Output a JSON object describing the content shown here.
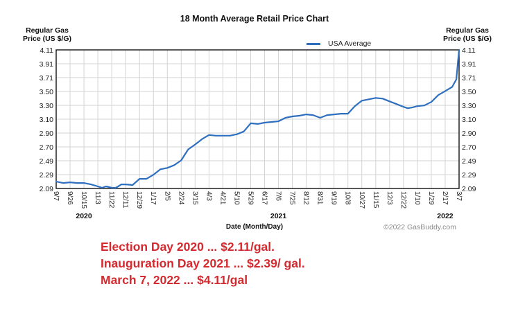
{
  "chart_data": {
    "type": "line",
    "title": "18 Month Average Retail Price Chart",
    "ylabel_left": [
      "Regular Gas",
      "Price (US $/G)"
    ],
    "ylabel_right": [
      "Regular Gas",
      "Price (US $/G)"
    ],
    "xlabel": "Date (Month/Day)",
    "ylim": [
      2.09,
      4.11
    ],
    "yticks": [
      "2.09",
      "2.29",
      "2.49",
      "2.70",
      "2.90",
      "3.10",
      "3.30",
      "3.50",
      "3.71",
      "3.91",
      "4.11"
    ],
    "xticks": [
      "9/7",
      "9/26",
      "10/15",
      "11/3",
      "11/22",
      "12/11",
      "12/29",
      "1/17",
      "2/5",
      "2/24",
      "3/15",
      "4/3",
      "4/21",
      "5/10",
      "5/29",
      "6/17",
      "7/6",
      "7/25",
      "8/12",
      "8/31",
      "9/19",
      "10/8",
      "10/27",
      "11/15",
      "12/3",
      "12/22",
      "1/10",
      "1/29",
      "2/17",
      "3/7"
    ],
    "years": [
      {
        "label": "2020",
        "tick_index": 2
      },
      {
        "label": "2021",
        "tick_index": 16
      },
      {
        "label": "2022",
        "tick_index": 28
      }
    ],
    "grid": true,
    "legend": {
      "position": "top-right",
      "entries": [
        "USA Average"
      ]
    },
    "series": [
      {
        "name": "USA Average",
        "color": "#2f6fbf",
        "x": [
          0,
          0.5,
          1,
          1.5,
          2,
          2.5,
          3,
          3.3,
          3.6,
          4,
          4.3,
          4.7,
          5,
          5.5,
          6,
          6.5,
          7,
          7.5,
          8,
          8.5,
          9,
          9.5,
          10,
          10.5,
          11,
          11.5,
          12,
          12.5,
          13,
          13.5,
          14,
          14.5,
          15,
          15.5,
          16,
          16.5,
          17,
          17.5,
          18,
          18.5,
          19,
          19.5,
          20,
          20.5,
          21,
          21.5,
          22,
          22.5,
          23,
          23.5,
          24,
          24.5,
          25,
          25.3,
          25.6,
          26,
          26.5,
          27,
          27.5,
          28,
          28.5,
          28.8,
          29
        ],
        "values": [
          2.19,
          2.17,
          2.18,
          2.17,
          2.17,
          2.15,
          2.12,
          2.1,
          2.12,
          2.1,
          2.1,
          2.15,
          2.15,
          2.14,
          2.23,
          2.23,
          2.29,
          2.37,
          2.39,
          2.43,
          2.5,
          2.66,
          2.73,
          2.81,
          2.87,
          2.86,
          2.86,
          2.86,
          2.88,
          2.92,
          3.04,
          3.03,
          3.05,
          3.06,
          3.07,
          3.12,
          3.14,
          3.15,
          3.17,
          3.16,
          3.12,
          3.16,
          3.17,
          3.18,
          3.18,
          3.29,
          3.37,
          3.39,
          3.41,
          3.4,
          3.36,
          3.32,
          3.28,
          3.26,
          3.27,
          3.29,
          3.3,
          3.35,
          3.45,
          3.51,
          3.57,
          3.68,
          4.11
        ]
      }
    ]
  },
  "credit": "©2022 GasBuddy.com",
  "notes": [
    "Election Day 2020 ... $2.11/gal.",
    "Inauguration Day 2021 ... $2.39/ gal.",
    "March 7, 2022 ... $4.11/gal"
  ]
}
